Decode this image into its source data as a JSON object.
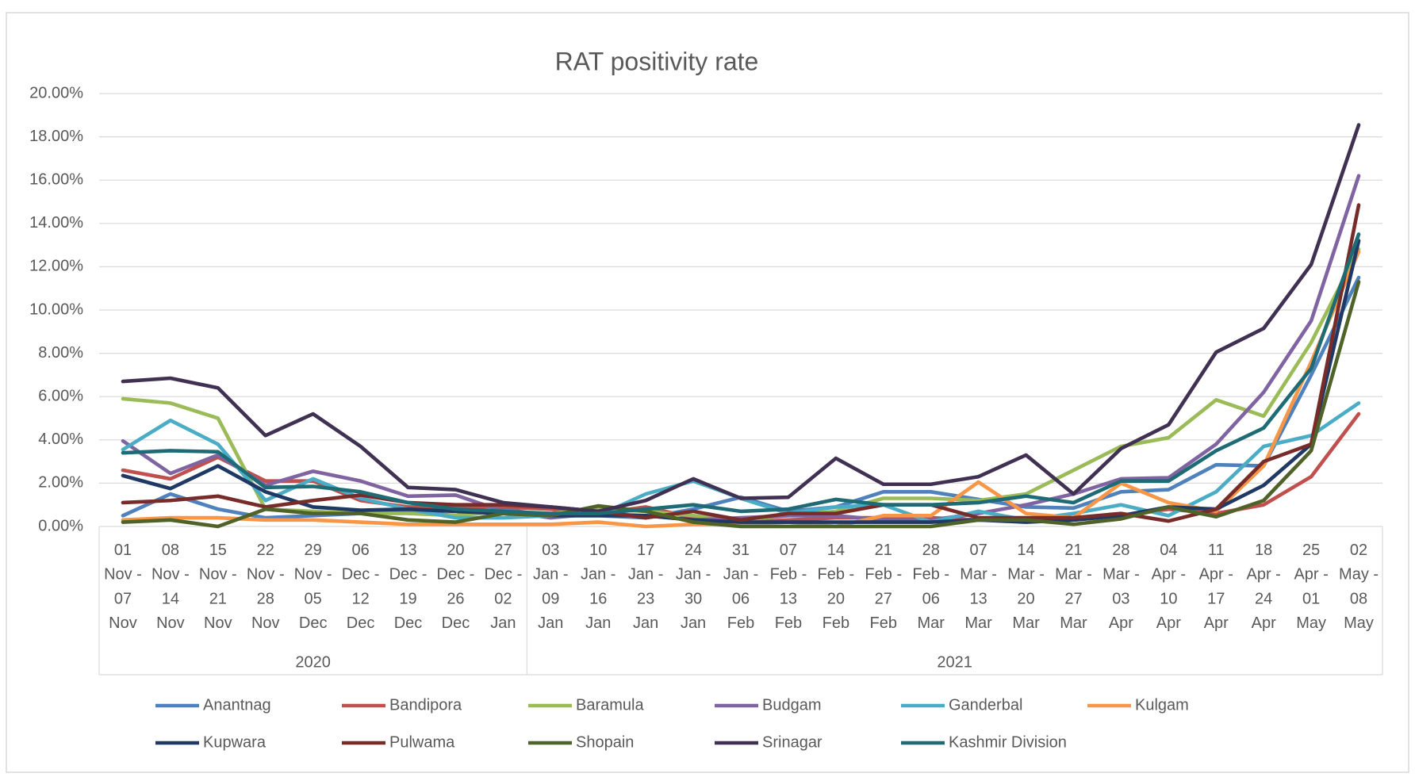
{
  "chart_data": {
    "type": "line",
    "title": "RAT positivity rate",
    "categories": [
      "01 Nov - 07 Nov",
      "08 Nov - 14 Nov",
      "15 Nov - 21 Nov",
      "22 Nov - 28 Nov",
      "29 Nov - 05 Dec",
      "06 Dec - 12 Dec",
      "13 Dec - 19 Dec",
      "20 Dec - 26 Dec",
      "27 Dec - 02 Jan",
      "03 Jan - 09 Jan",
      "10 Jan - 16 Jan",
      "17 Jan - 23 Jan",
      "24 Jan - 30 Jan",
      "31 Jan - 06 Feb",
      "07 Feb - 13 Feb",
      "14 Feb - 20 Feb",
      "21 Feb - 27 Feb",
      "28 Feb - 06 Mar",
      "07 Mar - 13 Mar",
      "14 Mar - 20 Mar",
      "21 Mar - 27 Mar",
      "28 Mar - 03 Apr",
      "04 Apr - 10 Apr",
      "11 Apr - 17 Apr",
      "18 Apr - 24 Apr",
      "25 Apr - 01 May",
      "02 May - 08 May"
    ],
    "groups": [
      {
        "name": "2020",
        "span": 9
      },
      {
        "name": "2021",
        "span": 18
      }
    ],
    "ylim": [
      0,
      20
    ],
    "yticks": [
      {
        "value": 0,
        "label": "0.00%"
      },
      {
        "value": 2,
        "label": "2.00%"
      },
      {
        "value": 4,
        "label": "4.00%"
      },
      {
        "value": 6,
        "label": "6.00%"
      },
      {
        "value": 8,
        "label": "8.00%"
      },
      {
        "value": 10,
        "label": "10.00%"
      },
      {
        "value": 12,
        "label": "12.00%"
      },
      {
        "value": 14,
        "label": "14.00%"
      },
      {
        "value": 16,
        "label": "16.00%"
      },
      {
        "value": 18,
        "label": "18.00%"
      },
      {
        "value": 20,
        "label": "20.00%"
      }
    ],
    "grid": true,
    "legend": "bottom",
    "series": [
      {
        "name": "Anantnag",
        "color": "#4f81bd",
        "values": [
          0.5,
          1.5,
          0.8,
          0.4,
          0.5,
          0.6,
          0.7,
          0.5,
          0.8,
          0.5,
          0.5,
          0.4,
          0.8,
          1.35,
          0.7,
          0.9,
          1.6,
          1.6,
          1.25,
          0.9,
          0.85,
          1.6,
          1.7,
          2.85,
          2.8,
          7.0,
          11.5
        ]
      },
      {
        "name": "Bandipora",
        "color": "#c0504d",
        "values": [
          2.6,
          2.2,
          3.2,
          2.1,
          2.1,
          1.2,
          0.9,
          0.9,
          0.9,
          0.8,
          0.6,
          0.9,
          0.4,
          0.2,
          0.3,
          0.4,
          0.4,
          0.4,
          0.3,
          0.3,
          0.3,
          0.5,
          0.8,
          0.6,
          1.0,
          2.3,
          5.2
        ]
      },
      {
        "name": "Baramula",
        "color": "#9bbb59",
        "values": [
          5.9,
          5.7,
          5.0,
          0.8,
          0.7,
          0.6,
          0.6,
          0.5,
          0.7,
          0.6,
          0.8,
          0.7,
          0.5,
          0.3,
          0.5,
          0.7,
          1.3,
          1.3,
          1.2,
          1.5,
          2.6,
          3.7,
          4.1,
          5.85,
          5.1,
          8.5,
          12.8
        ]
      },
      {
        "name": "Budgam",
        "color": "#8064a2",
        "values": [
          3.95,
          2.45,
          3.3,
          1.9,
          2.55,
          2.1,
          1.4,
          1.45,
          0.7,
          0.4,
          0.6,
          0.5,
          0.3,
          0.4,
          0.5,
          0.5,
          0.3,
          0.3,
          0.6,
          1.0,
          1.5,
          2.2,
          2.25,
          3.8,
          6.2,
          9.5,
          16.2
        ]
      },
      {
        "name": "Ganderbal",
        "color": "#4bacc6",
        "values": [
          3.55,
          4.9,
          3.8,
          1.2,
          2.2,
          1.3,
          0.8,
          0.4,
          0.4,
          0.5,
          0.5,
          1.5,
          2.1,
          1.3,
          0.6,
          0.9,
          1.0,
          0.2,
          0.7,
          0.3,
          0.6,
          1.0,
          0.5,
          1.6,
          3.7,
          4.2,
          5.7
        ]
      },
      {
        "name": "Kulgam",
        "color": "#f79646",
        "values": [
          0.3,
          0.4,
          0.4,
          0.3,
          0.3,
          0.2,
          0.1,
          0.1,
          0.1,
          0.1,
          0.2,
          0.0,
          0.1,
          0.1,
          0.2,
          0.0,
          0.5,
          0.5,
          2.05,
          0.6,
          0.4,
          2.0,
          1.1,
          0.7,
          2.8,
          7.6,
          12.7
        ]
      },
      {
        "name": "Kupwara",
        "color": "#1f3864",
        "values": [
          2.35,
          1.75,
          2.8,
          1.6,
          0.9,
          0.75,
          0.8,
          0.7,
          0.6,
          0.5,
          0.5,
          0.5,
          0.3,
          0.2,
          0.2,
          0.2,
          0.2,
          0.2,
          0.3,
          0.2,
          0.3,
          0.5,
          0.9,
          0.8,
          1.9,
          3.8,
          13.2
        ]
      },
      {
        "name": "Pulwama",
        "color": "#772c2a",
        "values": [
          1.1,
          1.2,
          1.4,
          0.9,
          1.2,
          1.45,
          1.1,
          1.0,
          1.0,
          0.9,
          0.7,
          0.4,
          0.7,
          0.3,
          0.6,
          0.6,
          1.0,
          1.0,
          0.4,
          0.4,
          0.4,
          0.6,
          0.25,
          0.8,
          3.0,
          3.8,
          14.85
        ]
      },
      {
        "name": "Shopain",
        "color": "#4f6228",
        "values": [
          0.2,
          0.3,
          0.0,
          0.8,
          0.6,
          0.6,
          0.3,
          0.2,
          0.6,
          0.5,
          0.95,
          0.7,
          0.2,
          0.0,
          0.0,
          0.0,
          0.0,
          0.0,
          0.3,
          0.3,
          0.1,
          0.35,
          0.9,
          0.45,
          1.2,
          3.5,
          11.3
        ]
      },
      {
        "name": "Srinagar",
        "color": "#403152",
        "values": [
          6.7,
          6.85,
          6.4,
          4.2,
          5.2,
          3.7,
          1.8,
          1.7,
          1.1,
          0.9,
          0.7,
          1.2,
          2.2,
          1.3,
          1.35,
          3.15,
          1.95,
          1.95,
          2.3,
          3.3,
          1.5,
          3.6,
          4.7,
          8.05,
          9.15,
          12.1,
          18.55
        ]
      },
      {
        "name": "Kashmir Division",
        "color": "#1f6b75",
        "values": [
          3.4,
          3.5,
          3.45,
          1.8,
          1.85,
          1.6,
          1.1,
          0.8,
          0.7,
          0.6,
          0.6,
          0.8,
          1.0,
          0.7,
          0.8,
          1.25,
          1.0,
          1.0,
          1.1,
          1.4,
          1.1,
          2.1,
          2.1,
          3.5,
          4.55,
          7.3,
          13.5
        ]
      }
    ]
  }
}
